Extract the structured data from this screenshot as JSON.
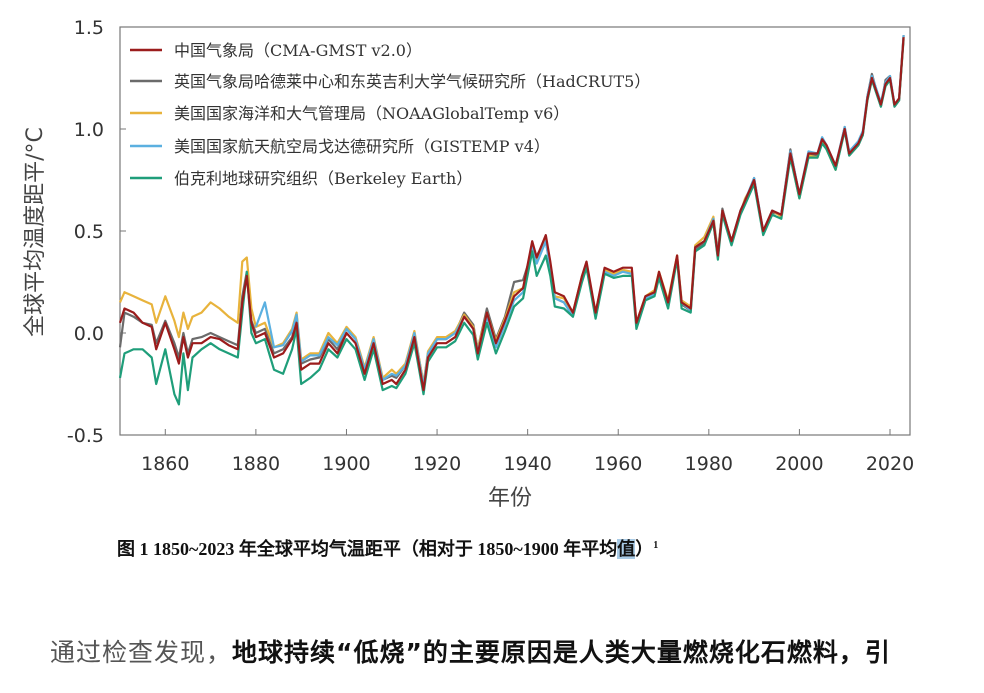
{
  "chart_data": {
    "type": "line",
    "xlabel": "年份",
    "ylabel": "全球平均温度距平/°C",
    "xlim": [
      1850,
      2025
    ],
    "ylim": [
      -0.5,
      1.5
    ],
    "xticks": [
      1860,
      1880,
      1900,
      1920,
      1940,
      1960,
      1980,
      2000,
      2020
    ],
    "yticks": [
      -0.5,
      0.0,
      0.5,
      1.0,
      1.5
    ],
    "ytick_labels": [
      "-0.5",
      "0.0",
      "0.5",
      "1.0",
      "1.5"
    ],
    "grid": false,
    "legend_position": "top-left",
    "x": [
      1850,
      1851,
      1853,
      1855,
      1857,
      1858,
      1860,
      1862,
      1863,
      1864,
      1865,
      1866,
      1868,
      1870,
      1872,
      1874,
      1876,
      1877,
      1878,
      1879,
      1880,
      1882,
      1884,
      1886,
      1888,
      1889,
      1890,
      1892,
      1894,
      1896,
      1898,
      1900,
      1902,
      1904,
      1906,
      1908,
      1910,
      1911,
      1913,
      1915,
      1917,
      1918,
      1920,
      1922,
      1924,
      1926,
      1928,
      1929,
      1931,
      1933,
      1935,
      1937,
      1939,
      1941,
      1942,
      1944,
      1945,
      1946,
      1948,
      1950,
      1952,
      1953,
      1955,
      1957,
      1959,
      1961,
      1963,
      1964,
      1966,
      1968,
      1969,
      1971,
      1973,
      1974,
      1976,
      1977,
      1979,
      1981,
      1982,
      1983,
      1985,
      1987,
      1988,
      1990,
      1992,
      1994,
      1996,
      1998,
      2000,
      2002,
      2004,
      2005,
      2006,
      2008,
      2010,
      2011,
      2013,
      2014,
      2015,
      2016,
      2018,
      2019,
      2020,
      2021,
      2022,
      2023
    ],
    "series": [
      {
        "name": "英国气象局哈德莱中心和东英吉利大学气候研究所（HadCRUT5）",
        "color": "#6b6b6b",
        "values": [
          -0.07,
          0.1,
          0.08,
          0.05,
          0.04,
          -0.05,
          0.06,
          -0.05,
          -0.12,
          0.0,
          -0.1,
          -0.03,
          -0.02,
          0.0,
          -0.02,
          -0.04,
          -0.06,
          0.18,
          0.3,
          0.06,
          0.0,
          0.02,
          -0.1,
          -0.08,
          -0.02,
          0.07,
          -0.15,
          -0.13,
          -0.12,
          -0.03,
          -0.08,
          0.02,
          -0.03,
          -0.18,
          -0.03,
          -0.23,
          -0.21,
          -0.22,
          -0.16,
          0.0,
          -0.25,
          -0.1,
          -0.03,
          -0.03,
          0.0,
          0.1,
          0.04,
          -0.08,
          0.12,
          -0.03,
          0.08,
          0.25,
          0.26,
          0.4,
          0.38,
          0.45,
          0.32,
          0.17,
          0.15,
          0.09,
          0.27,
          0.34,
          0.09,
          0.31,
          0.29,
          0.3,
          0.3,
          0.04,
          0.17,
          0.2,
          0.29,
          0.14,
          0.37,
          0.14,
          0.11,
          0.41,
          0.44,
          0.54,
          0.37,
          0.61,
          0.44,
          0.59,
          0.64,
          0.76,
          0.49,
          0.59,
          0.58,
          0.9,
          0.67,
          0.87,
          0.87,
          0.94,
          0.91,
          0.81,
          1.01,
          0.87,
          0.92,
          0.97,
          1.16,
          1.27,
          1.11,
          1.24,
          1.26,
          1.11,
          1.14,
          1.46
        ]
      },
      {
        "name": "美国国家海洋和大气管理局（NOAAGlobalTemp v6）",
        "color": "#e8b33c",
        "values": [
          0.15,
          0.2,
          0.18,
          0.16,
          0.14,
          0.05,
          0.18,
          0.06,
          -0.02,
          0.1,
          0.02,
          0.08,
          0.1,
          0.15,
          0.12,
          0.08,
          0.05,
          0.35,
          0.37,
          0.12,
          0.03,
          0.05,
          -0.07,
          -0.05,
          0.02,
          0.1,
          -0.13,
          -0.1,
          -0.1,
          0.0,
          -0.05,
          0.03,
          -0.02,
          -0.17,
          -0.02,
          -0.22,
          -0.18,
          -0.2,
          -0.15,
          0.01,
          -0.25,
          -0.09,
          -0.02,
          -0.02,
          0.01,
          0.09,
          0.03,
          -0.08,
          0.1,
          -0.04,
          0.07,
          0.2,
          0.22,
          0.42,
          0.36,
          0.46,
          0.33,
          0.18,
          0.17,
          0.1,
          0.28,
          0.33,
          0.1,
          0.31,
          0.29,
          0.31,
          0.3,
          0.05,
          0.18,
          0.21,
          0.3,
          0.16,
          0.38,
          0.16,
          0.13,
          0.43,
          0.47,
          0.57,
          0.4,
          0.6,
          0.45,
          0.59,
          0.66,
          0.74,
          0.49,
          0.6,
          0.57,
          0.87,
          0.66,
          0.87,
          0.86,
          0.94,
          0.9,
          0.8,
          1.0,
          0.88,
          0.92,
          0.98,
          1.14,
          1.25,
          1.12,
          1.22,
          1.24,
          1.12,
          1.15,
          1.45
        ]
      },
      {
        "name": "美国国家航天航空局戈达德研究所（GISTEMP v4）",
        "color": "#5bb0e0",
        "values": [
          null,
          null,
          null,
          null,
          null,
          null,
          null,
          null,
          null,
          null,
          null,
          null,
          null,
          null,
          null,
          null,
          null,
          null,
          null,
          null,
          0.03,
          0.15,
          -0.07,
          -0.06,
          0.01,
          0.09,
          -0.14,
          -0.11,
          -0.11,
          -0.02,
          -0.06,
          0.02,
          -0.03,
          -0.18,
          -0.03,
          -0.23,
          -0.2,
          -0.21,
          -0.16,
          0.0,
          -0.26,
          -0.1,
          -0.03,
          -0.03,
          0.0,
          0.08,
          0.02,
          -0.09,
          0.08,
          -0.07,
          0.04,
          0.16,
          0.2,
          0.42,
          0.34,
          0.45,
          0.32,
          0.17,
          0.15,
          0.08,
          0.26,
          0.33,
          0.08,
          0.3,
          0.28,
          0.3,
          0.29,
          0.04,
          0.17,
          0.19,
          0.29,
          0.14,
          0.37,
          0.15,
          0.11,
          0.42,
          0.45,
          0.56,
          0.39,
          0.6,
          0.45,
          0.6,
          0.65,
          0.76,
          0.5,
          0.6,
          0.58,
          0.89,
          0.68,
          0.89,
          0.88,
          0.96,
          0.92,
          0.82,
          1.01,
          0.89,
          0.94,
          0.99,
          1.16,
          1.26,
          1.13,
          1.23,
          1.26,
          1.12,
          1.15,
          1.46
        ]
      },
      {
        "name": "伯克利地球研究组织（Berkeley Earth）",
        "color": "#1f9e7a",
        "values": [
          -0.22,
          -0.1,
          -0.08,
          -0.08,
          -0.12,
          -0.25,
          -0.08,
          -0.3,
          -0.35,
          -0.1,
          -0.28,
          -0.12,
          -0.08,
          -0.05,
          -0.08,
          -0.1,
          -0.12,
          0.1,
          0.3,
          0.0,
          -0.05,
          -0.03,
          -0.18,
          -0.2,
          -0.08,
          0.02,
          -0.25,
          -0.22,
          -0.18,
          -0.08,
          -0.12,
          -0.03,
          -0.08,
          -0.23,
          -0.08,
          -0.28,
          -0.26,
          -0.27,
          -0.2,
          -0.05,
          -0.3,
          -0.14,
          -0.07,
          -0.07,
          -0.04,
          0.05,
          -0.01,
          -0.13,
          0.05,
          -0.1,
          0.01,
          0.13,
          0.17,
          0.4,
          0.28,
          0.38,
          0.28,
          0.13,
          0.12,
          0.08,
          0.25,
          0.32,
          0.07,
          0.29,
          0.27,
          0.28,
          0.28,
          0.02,
          0.16,
          0.18,
          0.27,
          0.12,
          0.36,
          0.12,
          0.1,
          0.4,
          0.43,
          0.54,
          0.36,
          0.58,
          0.43,
          0.58,
          0.63,
          0.73,
          0.48,
          0.58,
          0.56,
          0.86,
          0.66,
          0.86,
          0.86,
          0.93,
          0.9,
          0.8,
          0.99,
          0.87,
          0.92,
          0.97,
          1.14,
          1.24,
          1.11,
          1.21,
          1.24,
          1.11,
          1.14,
          1.44
        ]
      },
      {
        "name": "中国气象局（CMA-GMST v2.0）",
        "color": "#9b1c1c",
        "values": [
          0.05,
          0.12,
          0.1,
          0.05,
          0.03,
          -0.08,
          0.05,
          -0.08,
          -0.15,
          -0.02,
          -0.12,
          -0.05,
          -0.05,
          -0.02,
          -0.03,
          -0.06,
          -0.08,
          0.15,
          0.28,
          0.05,
          -0.02,
          0.0,
          -0.12,
          -0.1,
          -0.03,
          0.05,
          -0.18,
          -0.15,
          -0.15,
          -0.05,
          -0.1,
          0.0,
          -0.05,
          -0.2,
          -0.05,
          -0.25,
          -0.23,
          -0.25,
          -0.18,
          -0.02,
          -0.28,
          -0.12,
          -0.05,
          -0.05,
          -0.02,
          0.08,
          0.02,
          -0.1,
          0.1,
          -0.05,
          0.06,
          0.18,
          0.22,
          0.45,
          0.37,
          0.48,
          0.35,
          0.2,
          0.18,
          0.1,
          0.28,
          0.35,
          0.1,
          0.32,
          0.3,
          0.32,
          0.32,
          0.05,
          0.18,
          0.2,
          0.3,
          0.15,
          0.38,
          0.15,
          0.12,
          0.42,
          0.45,
          0.55,
          0.38,
          0.6,
          0.45,
          0.6,
          0.65,
          0.75,
          0.5,
          0.6,
          0.58,
          0.88,
          0.68,
          0.88,
          0.88,
          0.95,
          0.92,
          0.82,
          1.0,
          0.88,
          0.93,
          0.98,
          1.15,
          1.25,
          1.12,
          1.22,
          1.25,
          1.12,
          1.15,
          1.45
        ]
      }
    ],
    "legend": [
      {
        "label": "中国气象局（CMA-GMST v2.0）",
        "color": "#9b1c1c"
      },
      {
        "label": "英国气象局哈德莱中心和东英吉利大学气候研究所（HadCRUT5）",
        "color": "#6b6b6b"
      },
      {
        "label": "美国国家海洋和大气管理局（NOAAGlobalTemp v6）",
        "color": "#e8b33c"
      },
      {
        "label": "美国国家航天航空局戈达德研究所（GISTEMP v4）",
        "color": "#5bb0e0"
      },
      {
        "label": "伯克利地球研究组织（Berkeley Earth）",
        "color": "#1f9e7a"
      }
    ]
  },
  "caption": {
    "main": "图 1  1850~2023 年全球平均气温距平（相对于 1850~1900 年平均",
    "highlight": "值",
    "close": "）",
    "footnote": "1"
  },
  "paragraph": {
    "lead": "通过检查发现，",
    "bold": "地球持续“低烧”的主要原因是人类大量燃烧化石燃料，引"
  }
}
